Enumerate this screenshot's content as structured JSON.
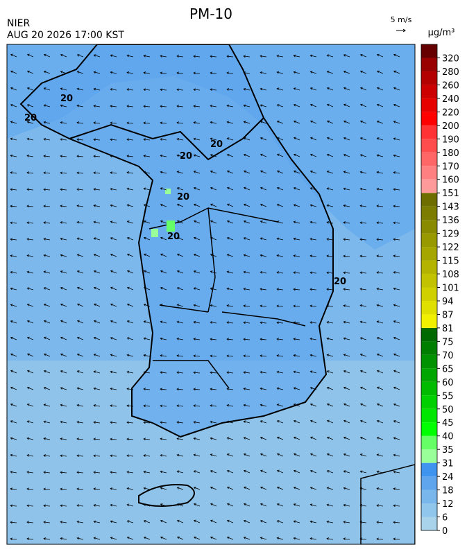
{
  "header": {
    "title": "PM-10",
    "agency": "NIER",
    "timestamp": "AUG 20 2026 17:00 KST"
  },
  "wind_scale": {
    "label": "5 m/s"
  },
  "colorbar": {
    "unit": "μg/m³",
    "ticks": [
      0,
      6,
      12,
      18,
      24,
      31,
      35,
      40,
      45,
      50,
      55,
      60,
      65,
      70,
      75,
      81,
      87,
      94,
      101,
      108,
      115,
      122,
      129,
      136,
      143,
      151,
      160,
      170,
      180,
      190,
      200,
      220,
      240,
      260,
      280,
      320
    ],
    "colors": [
      "#a8d3ea",
      "#90c5ec",
      "#78b6ec",
      "#5ea5ee",
      "#3f94f0",
      "#99ff99",
      "#66ff66",
      "#00ff00",
      "#00e600",
      "#00d000",
      "#00bb00",
      "#00a600",
      "#009200",
      "#007e00",
      "#006a00",
      "#f0f000",
      "#e0e000",
      "#d0d000",
      "#c2c200",
      "#b4b400",
      "#a6a600",
      "#989800",
      "#8a8a00",
      "#7c7c00",
      "#6e6e00",
      "#ff9a9a",
      "#ff8080",
      "#ff6666",
      "#ff4d4d",
      "#ff3333",
      "#ff0000",
      "#e60000",
      "#cc0000",
      "#b30000",
      "#990000",
      "#660000"
    ]
  },
  "contour_labels": [
    "20",
    "20",
    "20",
    "20",
    "20",
    "20",
    "20"
  ]
}
